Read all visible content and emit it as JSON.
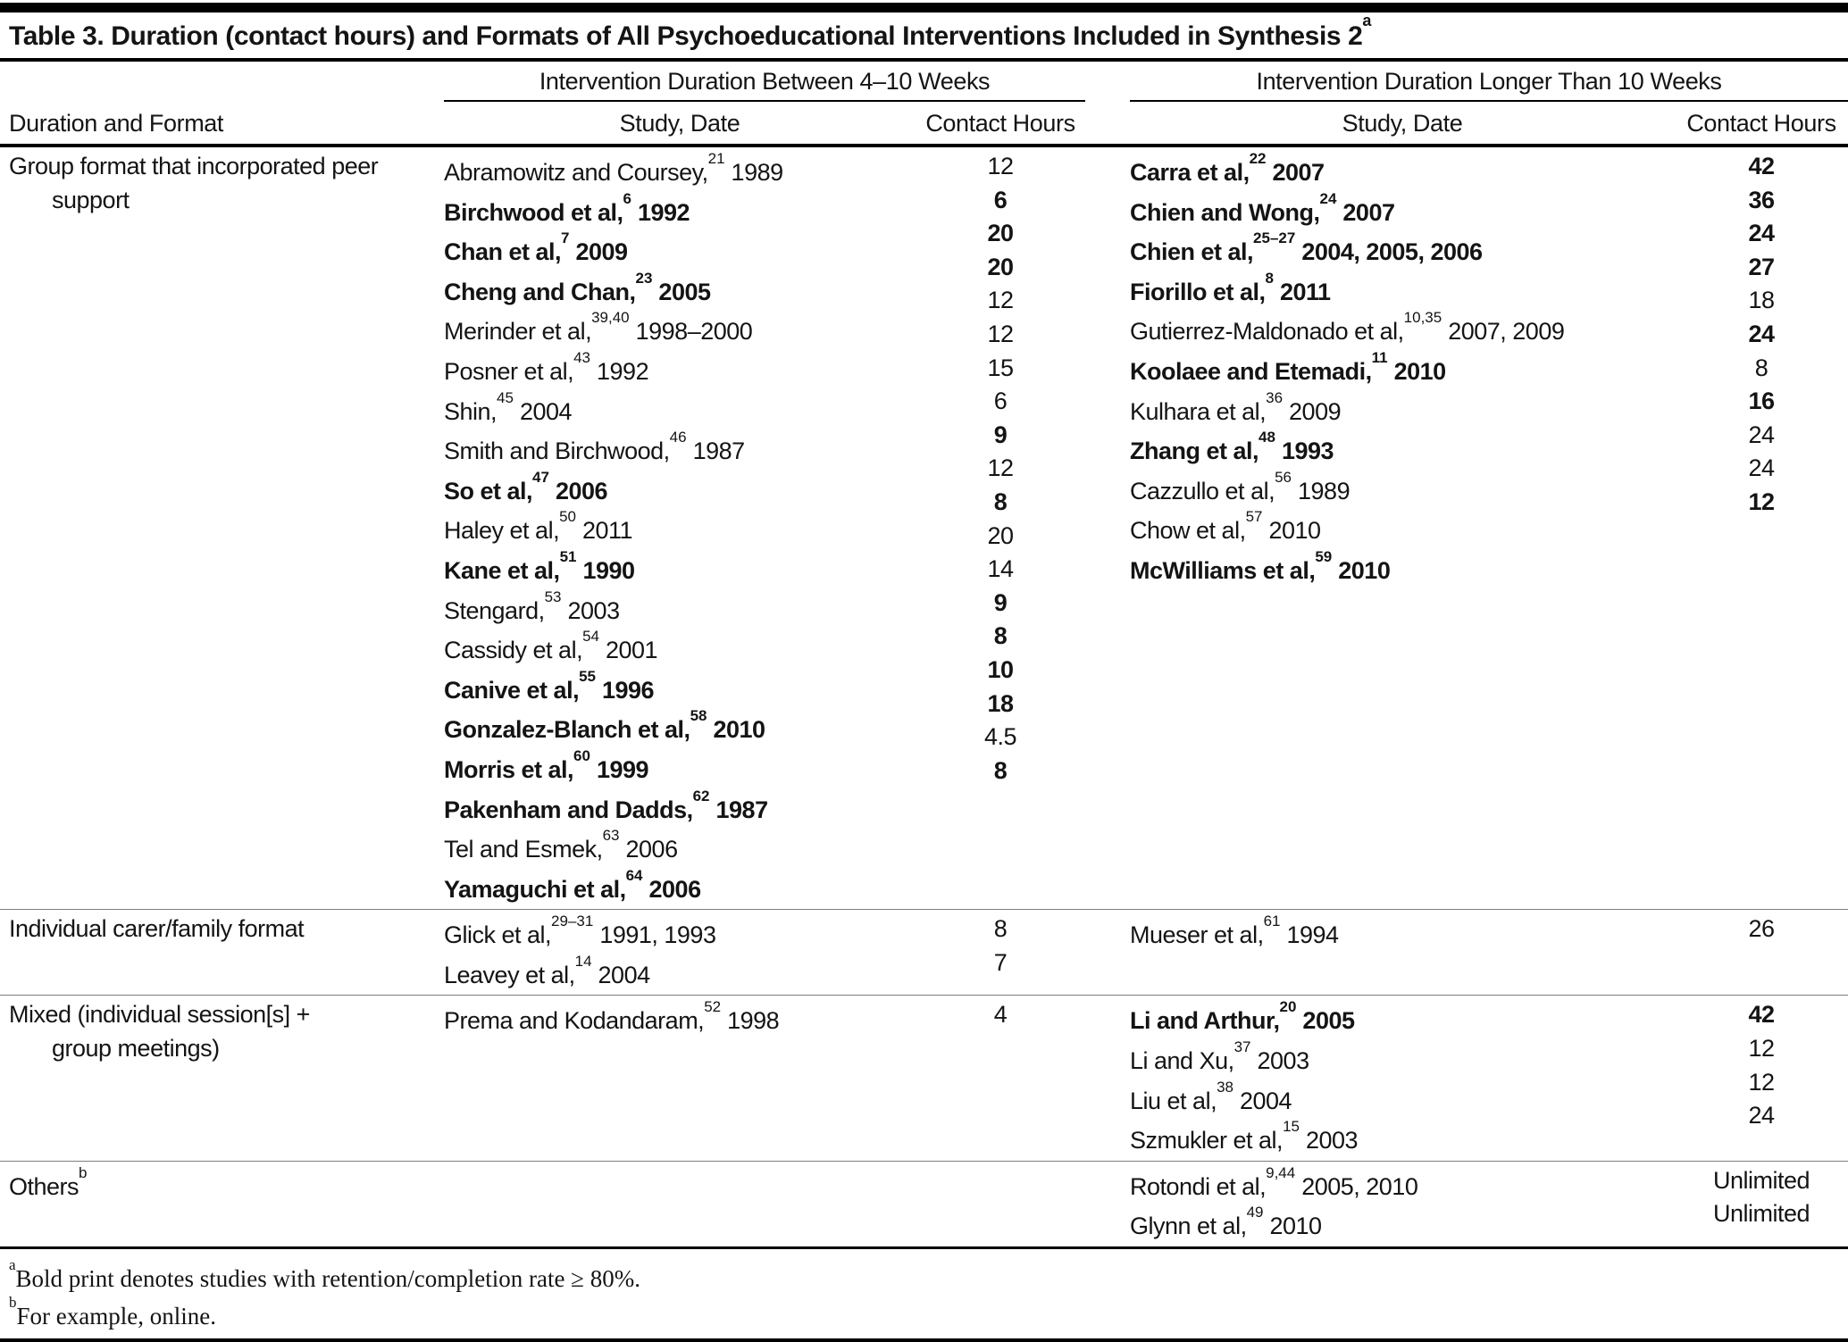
{
  "colors": {
    "ink": "#141414",
    "rule_black": "#000000",
    "divider_gray": "#7d7d7d",
    "background": "#ffffff"
  },
  "title": {
    "text": "Table 3. Duration (contact hours) and Formats of All Psychoeducational Interventions Included in Synthesis 2",
    "sup": "a"
  },
  "header": {
    "stub": "Duration and Format",
    "groups": [
      {
        "label": "Intervention Duration Between 4–10 Weeks",
        "study": "Study, Date",
        "hours": "Contact Hours"
      },
      {
        "label": "Intervention Duration Longer Than 10 Weeks",
        "study": "Study, Date",
        "hours": "Contact Hours"
      }
    ]
  },
  "sections": [
    {
      "format": {
        "lines": [
          "Group format that incorporated peer",
          "support"
        ],
        "sup": ""
      },
      "group1": [
        {
          "name": "Abramowitz and Coursey,",
          "ref": "21",
          "year": "1989",
          "hours": "12",
          "bold": false
        },
        {
          "name": "Birchwood et al,",
          "ref": "6",
          "year": "1992",
          "hours": "6",
          "bold": true
        },
        {
          "name": "Chan et al,",
          "ref": "7",
          "year": "2009",
          "hours": "20",
          "bold": true
        },
        {
          "name": "Cheng and Chan,",
          "ref": "23",
          "year": "2005",
          "hours": "20",
          "bold": true
        },
        {
          "name": "Merinder et al,",
          "ref": "39,40",
          "year": "1998–2000",
          "hours": "12",
          "bold": false
        },
        {
          "name": "Posner et al,",
          "ref": "43",
          "year": "1992",
          "hours": "12",
          "bold": false
        },
        {
          "name": "Shin,",
          "ref": "45",
          "year": "2004",
          "hours": "15",
          "bold": false
        },
        {
          "name": "Smith and Birchwood,",
          "ref": "46",
          "year": "1987",
          "hours": "6",
          "bold": false
        },
        {
          "name": "So et al,",
          "ref": "47",
          "year": "2006",
          "hours": "9",
          "bold": true
        },
        {
          "name": "Haley et al,",
          "ref": "50",
          "year": "2011",
          "hours": "12",
          "bold": false
        },
        {
          "name": "Kane et al,",
          "ref": "51",
          "year": "1990",
          "hours": "8",
          "bold": true
        },
        {
          "name": "Stengard,",
          "ref": "53",
          "year": "2003",
          "hours": "20",
          "bold": false
        },
        {
          "name": "Cassidy et al,",
          "ref": "54",
          "year": "2001",
          "hours": "14",
          "bold": false
        },
        {
          "name": "Canive et al,",
          "ref": "55",
          "year": "1996",
          "hours": "9",
          "bold": true
        },
        {
          "name": "Gonzalez-Blanch et al,",
          "ref": "58",
          "year": "2010",
          "hours": "8",
          "bold": true
        },
        {
          "name": "Morris et al,",
          "ref": "60",
          "year": "1999",
          "hours": "10",
          "bold": true
        },
        {
          "name": "Pakenham and Dadds,",
          "ref": "62",
          "year": "1987",
          "hours": "18",
          "bold": true
        },
        {
          "name": "Tel and Esmek,",
          "ref": "63",
          "year": "2006",
          "hours": "4.5",
          "bold": false
        },
        {
          "name": "Yamaguchi et al,",
          "ref": "64",
          "year": "2006",
          "hours": "8",
          "bold": true
        }
      ],
      "group2": [
        {
          "name": "Carra et al,",
          "ref": "22",
          "year": "2007",
          "hours": "42",
          "bold": true
        },
        {
          "name": "Chien and Wong,",
          "ref": "24",
          "year": "2007",
          "hours": "36",
          "bold": true
        },
        {
          "name": "Chien et al,",
          "ref": "25–27",
          "year": "2004, 2005, 2006",
          "hours": "24",
          "bold": true
        },
        {
          "name": "Fiorillo et al,",
          "ref": "8",
          "year": "2011",
          "hours": "27",
          "bold": true
        },
        {
          "name": "Gutierrez-Maldonado et al,",
          "ref": "10,35",
          "year": "2007, 2009",
          "hours": "18",
          "bold": false
        },
        {
          "name": "Koolaee and Etemadi,",
          "ref": "11",
          "year": "2010",
          "hours": "24",
          "bold": true
        },
        {
          "name": "Kulhara et al,",
          "ref": "36",
          "year": "2009",
          "hours": "8",
          "bold": false
        },
        {
          "name": "Zhang et al,",
          "ref": "48",
          "year": "1993",
          "hours": "16",
          "bold": true
        },
        {
          "name": "Cazzullo et al,",
          "ref": "56",
          "year": "1989",
          "hours": "24",
          "bold": false
        },
        {
          "name": "Chow et al,",
          "ref": "57",
          "year": "2010",
          "hours": "24",
          "bold": false
        },
        {
          "name": "McWilliams et al,",
          "ref": "59",
          "year": "2010",
          "hours": "12",
          "bold": true
        }
      ]
    },
    {
      "format": {
        "lines": [
          "Individual carer/family format"
        ],
        "sup": ""
      },
      "group1": [
        {
          "name": "Glick et al,",
          "ref": "29–31",
          "year": "1991, 1993",
          "hours": "8",
          "bold": false
        },
        {
          "name": "Leavey et al,",
          "ref": "14",
          "year": "2004",
          "hours": "7",
          "bold": false
        }
      ],
      "group2": [
        {
          "name": "Mueser et al,",
          "ref": "61",
          "year": "1994",
          "hours": "26",
          "bold": false
        }
      ]
    },
    {
      "format": {
        "lines": [
          "Mixed (individual session[s] +",
          "group meetings)"
        ],
        "sup": ""
      },
      "group1": [
        {
          "name": "Prema and Kodandaram,",
          "ref": "52",
          "year": "1998",
          "hours": "4",
          "bold": false
        }
      ],
      "group2": [
        {
          "name": "Li and Arthur,",
          "ref": "20",
          "year": "2005",
          "hours": "42",
          "bold": true
        },
        {
          "name": "Li and Xu,",
          "ref": "37",
          "year": "2003",
          "hours": "12",
          "bold": false
        },
        {
          "name": "Liu et al,",
          "ref": "38",
          "year": "2004",
          "hours": "12",
          "bold": false
        },
        {
          "name": "Szmukler et al,",
          "ref": "15",
          "year": "2003",
          "hours": "24",
          "bold": false
        }
      ]
    },
    {
      "format": {
        "lines": [
          "Others"
        ],
        "sup": "b"
      },
      "group1": [],
      "group2": [
        {
          "name": "Rotondi et al,",
          "ref": "9,44",
          "year": "2005, 2010",
          "hours": "Unlimited",
          "bold": false
        },
        {
          "name": "Glynn et al,",
          "ref": "49",
          "year": "2010",
          "hours": "Unlimited",
          "bold": false
        }
      ]
    }
  ],
  "footnotes": [
    {
      "sup": "a",
      "text": "Bold print denotes studies with retention/completion rate ≥ 80%."
    },
    {
      "sup": "b",
      "text": "For example, online."
    }
  ]
}
